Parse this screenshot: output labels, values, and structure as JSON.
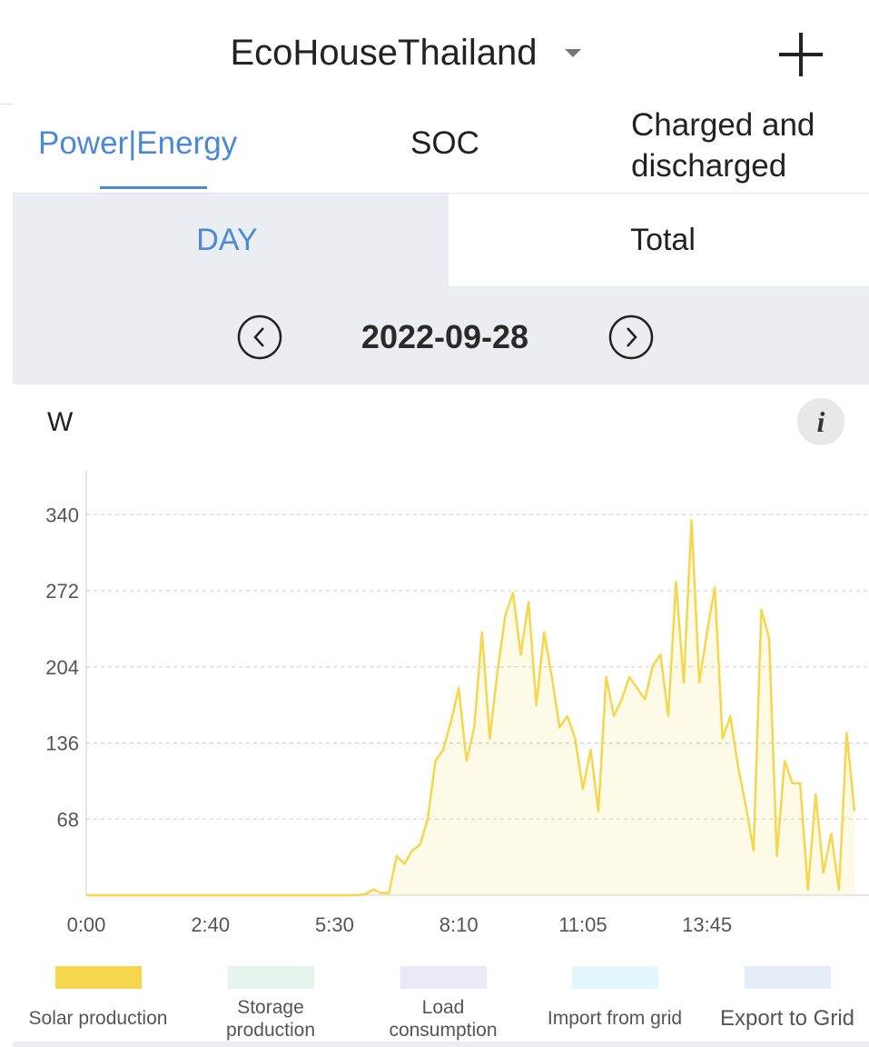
{
  "header": {
    "title": "EcoHouseThailand"
  },
  "tabs": [
    "Power|Energy",
    "SOC",
    "Charged and discharged"
  ],
  "toggle": [
    "DAY",
    "Total"
  ],
  "date": "2022-09-28",
  "chart_data": {
    "type": "line",
    "y_label": "W",
    "categories": [
      "0:00",
      null,
      null,
      null,
      null,
      null,
      null,
      null,
      null,
      null,
      null,
      null,
      null,
      null,
      null,
      null,
      "2:40",
      null,
      null,
      null,
      null,
      null,
      null,
      null,
      null,
      null,
      null,
      null,
      null,
      null,
      null,
      null,
      "5:30",
      null,
      null,
      null,
      null,
      null,
      null,
      null,
      null,
      null,
      null,
      null,
      null,
      null,
      null,
      null,
      "8:10",
      null,
      null,
      null,
      null,
      null,
      null,
      null,
      null,
      null,
      null,
      null,
      null,
      null,
      null,
      null,
      "11:05",
      null,
      null,
      null,
      null,
      null,
      null,
      null,
      null,
      null,
      null,
      null,
      null,
      null,
      null,
      null,
      "13:45",
      null,
      null,
      null,
      null,
      null,
      null,
      null,
      null,
      null,
      null,
      null,
      null,
      null,
      null,
      null,
      null,
      null,
      null,
      null
    ],
    "series": [
      {
        "name": "Solar production",
        "color": "#f5d64c",
        "values": [
          0,
          0,
          0,
          0,
          0,
          0,
          0,
          0,
          0,
          0,
          0,
          0,
          0,
          0,
          0,
          0,
          0,
          0,
          0,
          0,
          0,
          0,
          0,
          0,
          0,
          0,
          0,
          0,
          0,
          0,
          0,
          0,
          0,
          0,
          0,
          0,
          1,
          5,
          2,
          2,
          35,
          28,
          40,
          45,
          68,
          120,
          130,
          155,
          185,
          120,
          150,
          235,
          140,
          200,
          250,
          270,
          215,
          262,
          170,
          235,
          195,
          150,
          160,
          140,
          95,
          130,
          75,
          195,
          160,
          175,
          195,
          185,
          175,
          205,
          215,
          160,
          280,
          190,
          335,
          190,
          235,
          275,
          140,
          160,
          115,
          80,
          40,
          255,
          230,
          35,
          120,
          100,
          100,
          5,
          90,
          20,
          55,
          5,
          145,
          75
        ]
      }
    ],
    "legend": [
      {
        "name": "Storage production",
        "color": "#e4f3ec"
      },
      {
        "name": "Load consumption",
        "color": "#ebe8f8"
      },
      {
        "name": "Import from grid",
        "color": "#e1f7fc"
      },
      {
        "name": "Export to Grid",
        "color": "#e4edf8"
      }
    ],
    "ylim": [
      0,
      380
    ],
    "yticks": [
      68,
      136,
      204,
      272,
      340
    ],
    "grid": true
  }
}
